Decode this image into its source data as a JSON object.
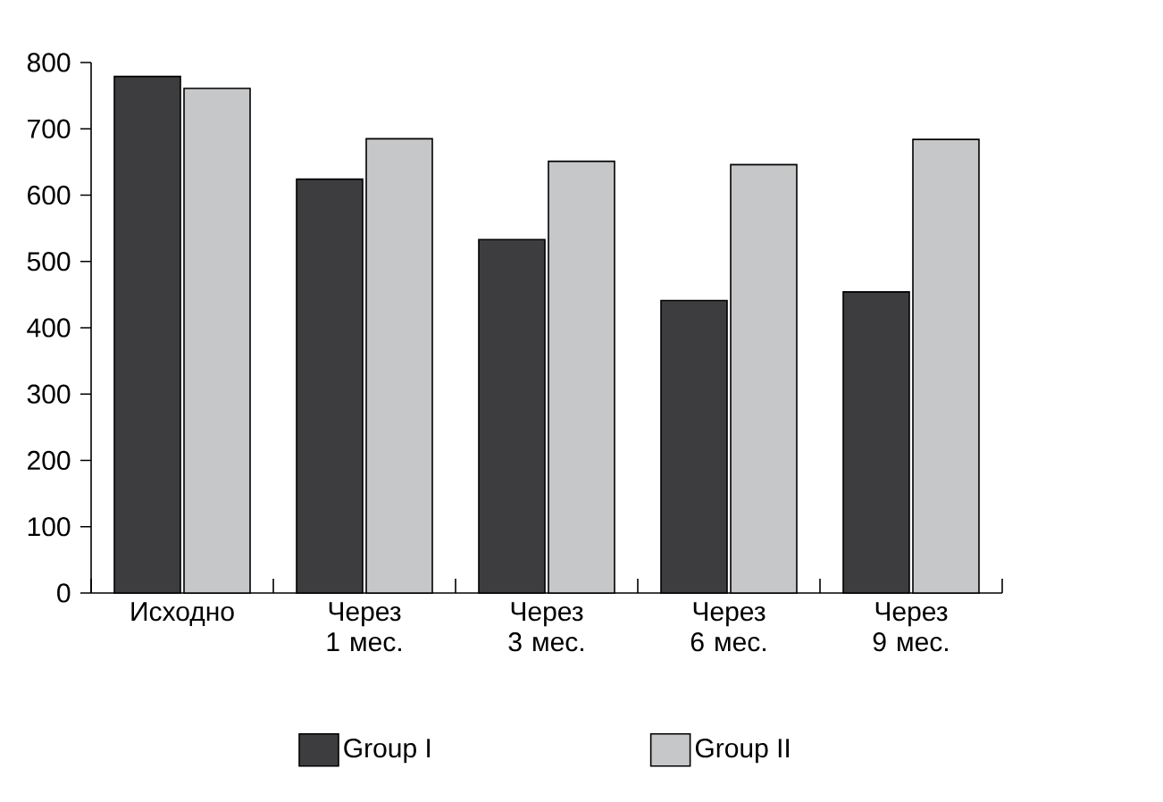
{
  "chart_data": {
    "type": "bar",
    "categories": [
      "Исходно",
      "Через 1 мес.",
      "Через 3 мес.",
      "Через 6 мес.",
      "Через 9 мес."
    ],
    "series": [
      {
        "name": "Group I",
        "color": "#3d3d3f",
        "values": [
          779,
          624,
          533,
          441,
          454
        ]
      },
      {
        "name": "Group II",
        "color": "#c6c7c9",
        "values": [
          761,
          685,
          651,
          646,
          684
        ]
      }
    ],
    "ylim": [
      0,
      800
    ],
    "yticks": [
      0,
      100,
      200,
      300,
      400,
      500,
      600,
      700,
      800
    ],
    "legend": "bottom"
  }
}
